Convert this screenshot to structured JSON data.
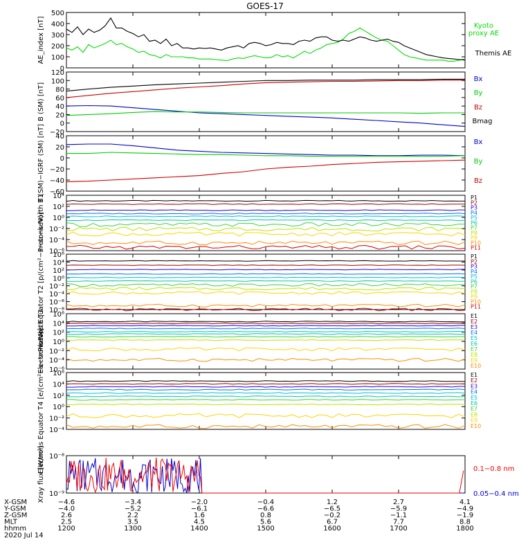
{
  "title": "GOES-17",
  "colors": {
    "p": [
      "#000000",
      "#9b0000",
      "#2b00d6",
      "#0070ff",
      "#00bcd4",
      "#00c8a0",
      "#3cd23c",
      "#b4e600",
      "#ffd200",
      "#ff8c00",
      "#d40000"
    ],
    "e": [
      "#000000",
      "#9b0000",
      "#2b00d6",
      "#0070ff",
      "#00bcd4",
      "#00c8a0",
      "#3cd23c",
      "#b4e600",
      "#ffd200",
      "#ff8c00",
      "#d40000"
    ]
  },
  "chart_data": [
    {
      "type": "line",
      "id": "ae",
      "ylabel": "AE_index [nT]",
      "ylim": [
        0,
        500
      ],
      "yticks": [
        "0",
        "100",
        "200",
        "300",
        "400",
        "500"
      ],
      "ytickvals": [
        0,
        100,
        200,
        300,
        400,
        500
      ],
      "x": [
        1200,
        1205,
        1210,
        1215,
        1220,
        1225,
        1230,
        1235,
        1240,
        1245,
        1250,
        1255,
        1300,
        1305,
        1310,
        1315,
        1320,
        1325,
        1330,
        1335,
        1340,
        1345,
        1350,
        1355,
        1400,
        1405,
        1410,
        1415,
        1420,
        1425,
        1430,
        1435,
        1440,
        1445,
        1450,
        1455,
        1500,
        1505,
        1510,
        1515,
        1520,
        1525,
        1530,
        1535,
        1540,
        1545,
        1550,
        1555,
        1600,
        1605,
        1610,
        1615,
        1620,
        1625,
        1630,
        1635,
        1640,
        1645,
        1650,
        1655,
        1700,
        1705,
        1710,
        1715,
        1720,
        1725,
        1730,
        1735,
        1740,
        1745,
        1750,
        1755,
        1800
      ],
      "series": [
        {
          "name": "Kyoto proxy AE",
          "color": "#00dd00",
          "values": [
            180,
            160,
            190,
            140,
            210,
            180,
            200,
            220,
            250,
            210,
            220,
            190,
            170,
            140,
            150,
            120,
            110,
            90,
            120,
            100,
            100,
            100,
            90,
            90,
            80,
            80,
            80,
            75,
            70,
            65,
            80,
            90,
            85,
            100,
            110,
            100,
            90,
            95,
            120,
            100,
            110,
            90,
            120,
            150,
            130,
            160,
            180,
            210,
            220,
            230,
            260,
            310,
            330,
            360,
            330,
            300,
            270,
            250,
            240,
            200,
            160,
            120,
            100,
            90,
            80,
            70,
            70,
            70,
            70,
            60,
            60,
            70,
            80
          ]
        },
        {
          "name": "Themis AE",
          "color": "#000000",
          "values": [
            350,
            320,
            370,
            300,
            350,
            320,
            340,
            380,
            450,
            360,
            360,
            330,
            310,
            280,
            300,
            240,
            250,
            220,
            260,
            200,
            220,
            180,
            180,
            170,
            180,
            175,
            180,
            170,
            160,
            180,
            190,
            200,
            180,
            220,
            230,
            220,
            200,
            210,
            230,
            220,
            220,
            210,
            240,
            250,
            240,
            270,
            280,
            280,
            250,
            240,
            250,
            240,
            260,
            280,
            270,
            250,
            240,
            250,
            260,
            240,
            230,
            200,
            180,
            160,
            140,
            120,
            110,
            100,
            90,
            85,
            80,
            75,
            70
          ]
        }
      ]
    },
    {
      "type": "line",
      "id": "bsm",
      "ylabel": "B (SM) [nT]",
      "ylim": [
        -20,
        120
      ],
      "yticks": [
        "−20",
        "0",
        "20",
        "40",
        "60",
        "80",
        "100",
        "120"
      ],
      "ytickvals": [
        -20,
        0,
        20,
        40,
        60,
        80,
        100,
        120
      ],
      "x": [
        1200,
        1220,
        1240,
        1300,
        1320,
        1340,
        1400,
        1420,
        1440,
        1500,
        1520,
        1540,
        1600,
        1620,
        1640,
        1700,
        1720,
        1740,
        1800
      ],
      "series": [
        {
          "name": "Bx",
          "color": "#0000cc",
          "values": [
            40,
            41,
            40,
            36,
            32,
            28,
            24,
            22,
            20,
            18,
            16,
            14,
            12,
            9,
            6,
            3,
            0,
            -4,
            -8
          ]
        },
        {
          "name": "By",
          "color": "#00cc00",
          "values": [
            18,
            20,
            22,
            25,
            27,
            26,
            26,
            25,
            24,
            24,
            24,
            24,
            24,
            24,
            24,
            24,
            23,
            24,
            24
          ]
        },
        {
          "name": "Bz",
          "color": "#cc0000",
          "values": [
            60,
            65,
            70,
            74,
            78,
            82,
            85,
            88,
            92,
            95,
            96,
            97,
            98,
            98,
            99,
            100,
            100,
            101,
            101
          ]
        },
        {
          "name": "Bmag",
          "color": "#000000",
          "values": [
            75,
            80,
            84,
            87,
            90,
            92,
            94,
            96,
            98,
            100,
            100,
            101,
            101,
            101,
            102,
            102,
            102,
            103,
            103
          ]
        }
      ]
    },
    {
      "type": "line",
      "id": "bigrf",
      "ylabel": "B (SM)−IGRF (SM) [nT]",
      "ylim": [
        -60,
        40
      ],
      "yticks": [
        "−60",
        "−40",
        "−20",
        "0",
        "20",
        "40"
      ],
      "ytickvals": [
        -60,
        -40,
        -20,
        0,
        20,
        40
      ],
      "x": [
        1200,
        1220,
        1240,
        1300,
        1320,
        1340,
        1400,
        1420,
        1440,
        1500,
        1520,
        1540,
        1600,
        1620,
        1640,
        1700,
        1720,
        1740,
        1800
      ],
      "series": [
        {
          "name": "Bx",
          "color": "#0000cc",
          "values": [
            24,
            25,
            25,
            22,
            18,
            14,
            12,
            10,
            9,
            8,
            7,
            6,
            5,
            5,
            4,
            4,
            5,
            5,
            4
          ]
        },
        {
          "name": "By",
          "color": "#00cc00",
          "values": [
            8,
            8,
            10,
            9,
            8,
            7,
            6,
            6,
            5,
            4,
            4,
            3,
            3,
            3,
            3,
            3,
            3,
            3,
            4
          ]
        },
        {
          "name": "Bz",
          "color": "#cc0000",
          "values": [
            -43,
            -42,
            -40,
            -38,
            -36,
            -34,
            -32,
            -28,
            -25,
            -20,
            -17,
            -15,
            -12,
            -10,
            -8,
            -7,
            -6,
            -5,
            -4
          ]
        }
      ]
    },
    {
      "type": "line",
      "id": "pt1",
      "ylabel": "Protons North T1",
      "yscale": "log",
      "ylim": [
        -6,
        4
      ],
      "yticks": [
        "10⁻⁶",
        "10⁻⁴",
        "10⁻²",
        "10⁰",
        "10²",
        "10⁴"
      ],
      "ytickvals": [
        -6,
        -4,
        -2,
        0,
        2,
        4
      ],
      "legend": [
        "P1",
        "P2",
        "P3",
        "P4",
        "P5",
        "P6",
        "P7",
        "P8",
        "P9",
        "P10",
        "P11"
      ],
      "levels": [
        3.0,
        2.4,
        1.3,
        0.7,
        0.2,
        -0.5,
        -1.3,
        -2.1,
        -3.0,
        -4.6,
        -5.4
      ]
    },
    {
      "type": "line",
      "id": "pt2",
      "ylabel": "Protons Equator T2 [p/(cm²−s−sr−keV)]",
      "yscale": "log",
      "ylim": [
        -8,
        6
      ],
      "yticks": [
        "10⁻⁸",
        "10⁻⁶",
        "10⁻⁴",
        "10⁻²",
        "10⁰",
        "10²",
        "10⁴",
        "10⁶"
      ],
      "ytickvals": [
        -8,
        -6,
        -4,
        -2,
        0,
        2,
        4,
        6
      ],
      "legend": [
        "P1",
        "P2",
        "P3",
        "P4",
        "P5",
        "P6",
        "P7",
        "P8",
        "P9",
        "P10",
        "P11"
      ],
      "levels": [
        4.3,
        3.2,
        2.1,
        1.0,
        0.1,
        -0.8,
        -1.8,
        -2.7,
        -3.8,
        -7.0,
        -8.0
      ]
    },
    {
      "type": "line",
      "id": "et3",
      "ylabel": "Electrons North T3",
      "yscale": "log",
      "ylim": [
        -6,
        6
      ],
      "yticks": [
        "10⁻⁶",
        "10⁻⁴",
        "10⁻²",
        "10⁰",
        "10²",
        "10⁴",
        "10⁶"
      ],
      "ytickvals": [
        -6,
        -4,
        -2,
        0,
        2,
        4,
        6
      ],
      "legend": [
        "E1",
        "E2",
        "E3",
        "E4",
        "E5",
        "E6",
        "E7",
        "E8",
        "E9",
        "E10"
      ],
      "levels": [
        4.3,
        3.9,
        3.4,
        2.8,
        2.1,
        1.6,
        1.0,
        0.3,
        -1.7,
        -4.0
      ]
    },
    {
      "type": "line",
      "id": "et4",
      "ylabel": "Electrons Equator T4 [e/(cm²−s−sr−keV)]",
      "yscale": "log",
      "ylim": [
        -4,
        6
      ],
      "yticks": [
        "10⁻⁴",
        "10⁻²",
        "10⁰",
        "10²",
        "10⁴",
        "10⁶"
      ],
      "ytickvals": [
        -4,
        -2,
        0,
        2,
        4,
        6
      ],
      "legend": [
        "E1",
        "E2",
        "E3",
        "E4",
        "E5",
        "E6",
        "E7",
        "E8",
        "E9",
        "E10"
      ],
      "levels": [
        4.5,
        4.0,
        3.5,
        3.0,
        2.4,
        1.8,
        1.2,
        0.4,
        -1.6,
        -3.5
      ]
    },
    {
      "type": "line",
      "id": "xray",
      "ylabel": "Xray flux [W/m²]",
      "yscale": "log",
      "ylim": [
        -9,
        -8
      ],
      "yticks": [
        "10⁻⁹",
        "10⁻⁸"
      ],
      "ytickvals": [
        -9,
        -8
      ],
      "series": [
        {
          "name": "0.1−0.8 nm",
          "color": "#ee0000"
        },
        {
          "name": "0.05−0.4 nm",
          "color": "#0000cc"
        }
      ]
    }
  ],
  "xaxis": {
    "ticks": [
      "1200",
      "1300",
      "1400",
      "1500",
      "1600",
      "1700",
      "1800"
    ],
    "rows": [
      {
        "label": "X-GSM",
        "values": [
          "−4.6",
          "−3.4",
          "−2.0",
          "−0.4",
          "1.2",
          "2.7",
          "4.1"
        ]
      },
      {
        "label": "Y-GSM",
        "values": [
          "−4.0",
          "−5.2",
          "−6.1",
          "−6.6",
          "−6.5",
          "−5.9",
          "−4.9"
        ]
      },
      {
        "label": "Z-GSM",
        "values": [
          "2.6",
          "2.2",
          "1.6",
          "0.8",
          "−0.2",
          "−1.1",
          "−1.9"
        ]
      },
      {
        "label": "MLT",
        "values": [
          "2.5",
          "3.5",
          "4.5",
          "5.6",
          "6.7",
          "7.7",
          "8.8"
        ]
      },
      {
        "label": "hhmm",
        "values": [
          "1200",
          "1300",
          "1400",
          "1500",
          "1600",
          "1700",
          "1800"
        ]
      }
    ],
    "date": "2020 Jul 14"
  },
  "labels": {
    "ae_legend": [
      "Kyoto",
      "proxy AE",
      "Themis AE"
    ],
    "bsm_legend": [
      "Bx",
      "By",
      "Bz",
      "Bmag"
    ],
    "bigrf_legend": [
      "Bx",
      "By",
      "Bz"
    ],
    "xray_legend": [
      "0.1−0.8 nm",
      "0.05−0.4 nm"
    ]
  }
}
